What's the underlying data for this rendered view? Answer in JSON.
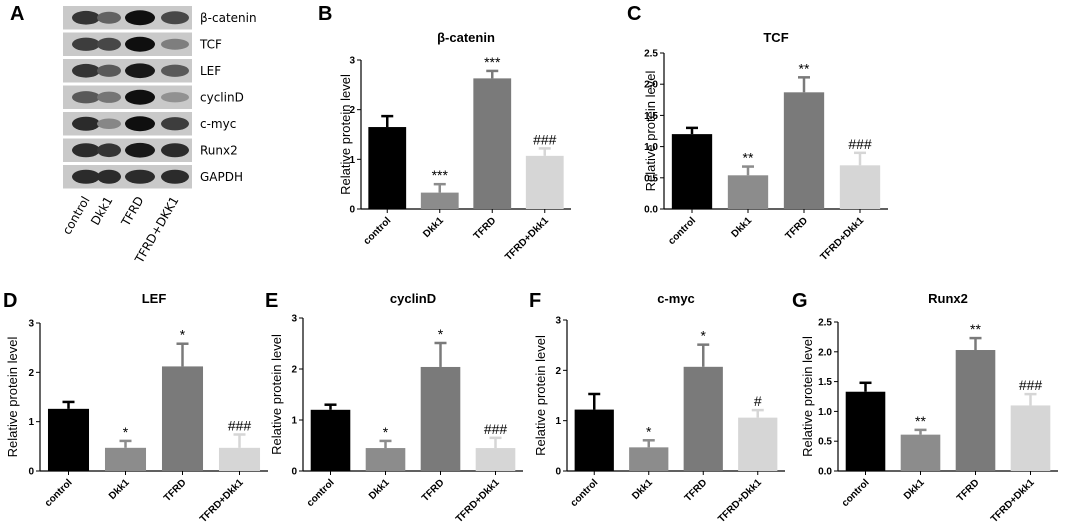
{
  "western_blot": {
    "panel": "A",
    "proteins": [
      "β-catenin",
      "TCF",
      "LEF",
      "cyclinD",
      "c-myc",
      "Runx2",
      "GAPDH"
    ],
    "lanes": [
      "control",
      "Dkk1",
      "TFRD",
      "TFRD+DKK1"
    ],
    "band_intensity": [
      [
        0.8,
        0.55,
        1.0,
        0.7
      ],
      [
        0.75,
        0.7,
        1.0,
        0.4
      ],
      [
        0.8,
        0.6,
        0.95,
        0.6
      ],
      [
        0.6,
        0.45,
        1.0,
        0.3
      ],
      [
        0.85,
        0.35,
        1.0,
        0.75
      ],
      [
        0.85,
        0.8,
        0.95,
        0.85
      ],
      [
        0.85,
        0.85,
        0.85,
        0.85
      ]
    ]
  },
  "chart_data": [
    {
      "panel": "B",
      "type": "bar",
      "title": "β-catenin",
      "ylabel": "Relative protein level",
      "xlabel": "",
      "categories": [
        "control",
        "Dkk1",
        "TFRD",
        "TFRD+Dkk1"
      ],
      "values": [
        1.65,
        0.33,
        2.63,
        1.07
      ],
      "errors": [
        0.22,
        0.17,
        0.15,
        0.15
      ],
      "significance": [
        "",
        "***",
        "***",
        "###"
      ],
      "ylim": [
        0,
        3
      ],
      "yticks": [
        "0",
        "1",
        "2",
        "3"
      ],
      "ytick_values": [
        0,
        1,
        2,
        3
      ],
      "colors": [
        "#000000",
        "#8c8c8c",
        "#7a7a7a",
        "#d6d6d6"
      ]
    },
    {
      "panel": "C",
      "type": "bar",
      "title": "TCF",
      "ylabel": "Relative protein level",
      "xlabel": "",
      "categories": [
        "control",
        "Dkk1",
        "TFRD",
        "TFRD+Dkk1"
      ],
      "values": [
        1.2,
        0.54,
        1.87,
        0.7
      ],
      "errors": [
        0.1,
        0.14,
        0.24,
        0.2
      ],
      "significance": [
        "",
        "**",
        "**",
        "###"
      ],
      "ylim": [
        0,
        2.5
      ],
      "yticks": [
        "0.0",
        "0.5",
        "1.0",
        "1.5",
        "2.0",
        "2.5"
      ],
      "ytick_values": [
        0,
        0.5,
        1,
        1.5,
        2,
        2.5
      ],
      "colors": [
        "#000000",
        "#8c8c8c",
        "#7a7a7a",
        "#d6d6d6"
      ]
    },
    {
      "panel": "D",
      "type": "bar",
      "title": "LEF",
      "ylabel": "Relative protein level",
      "xlabel": "",
      "categories": [
        "control",
        "Dkk1",
        "TFRD",
        "TFRD+Dkk1"
      ],
      "values": [
        1.26,
        0.47,
        2.12,
        0.47
      ],
      "errors": [
        0.14,
        0.14,
        0.46,
        0.27
      ],
      "significance": [
        "",
        "*",
        "*",
        "###"
      ],
      "ylim": [
        0,
        3
      ],
      "yticks": [
        "0",
        "1",
        "2",
        "3"
      ],
      "ytick_values": [
        0,
        1,
        2,
        3
      ],
      "colors": [
        "#000000",
        "#8c8c8c",
        "#7a7a7a",
        "#d6d6d6"
      ]
    },
    {
      "panel": "E",
      "type": "bar",
      "title": "cyclinD",
      "ylabel": "Relative protein level",
      "xlabel": "",
      "categories": [
        "control",
        "Dkk1",
        "TFRD",
        "TFRD+Dkk1"
      ],
      "values": [
        1.2,
        0.45,
        2.04,
        0.45
      ],
      "errors": [
        0.1,
        0.14,
        0.47,
        0.2
      ],
      "significance": [
        "",
        "*",
        "*",
        "###"
      ],
      "ylim": [
        0,
        3
      ],
      "yticks": [
        "0",
        "1",
        "2",
        "3"
      ],
      "ytick_values": [
        0,
        1,
        2,
        3
      ],
      "colors": [
        "#000000",
        "#8c8c8c",
        "#7a7a7a",
        "#d6d6d6"
      ]
    },
    {
      "panel": "F",
      "type": "bar",
      "title": "c-myc",
      "ylabel": "Relative protein level",
      "xlabel": "",
      "categories": [
        "control",
        "Dkk1",
        "TFRD",
        "TFRD+Dkk1"
      ],
      "values": [
        1.22,
        0.47,
        2.07,
        1.06
      ],
      "errors": [
        0.31,
        0.14,
        0.44,
        0.15
      ],
      "significance": [
        "",
        "*",
        "*",
        "#"
      ],
      "ylim": [
        0,
        3
      ],
      "yticks": [
        "0",
        "1",
        "2",
        "3"
      ],
      "ytick_values": [
        0,
        1,
        2,
        3
      ],
      "colors": [
        "#000000",
        "#8c8c8c",
        "#7a7a7a",
        "#d6d6d6"
      ]
    },
    {
      "panel": "G",
      "type": "bar",
      "title": "Runx2",
      "ylabel": "Relative protein level",
      "xlabel": "",
      "categories": [
        "control",
        "Dkk1",
        "TFRD",
        "TFRD+Dkk1"
      ],
      "values": [
        1.33,
        0.61,
        2.03,
        1.1
      ],
      "errors": [
        0.15,
        0.08,
        0.2,
        0.19
      ],
      "significance": [
        "",
        "**",
        "**",
        "###"
      ],
      "ylim": [
        0,
        2.5
      ],
      "yticks": [
        "0.0",
        "0.5",
        "1.0",
        "1.5",
        "2.0",
        "2.5"
      ],
      "ytick_values": [
        0,
        0.5,
        1,
        1.5,
        2,
        2.5
      ],
      "colors": [
        "#000000",
        "#8c8c8c",
        "#7a7a7a",
        "#d6d6d6"
      ]
    }
  ]
}
